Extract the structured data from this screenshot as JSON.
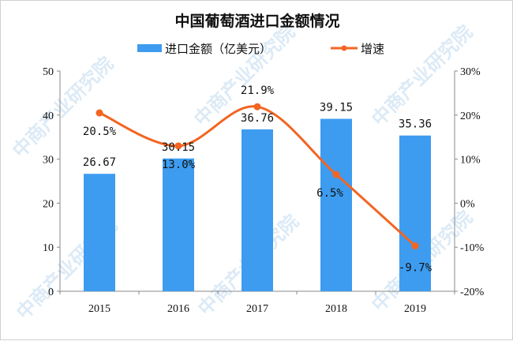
{
  "chart_data": {
    "type": "bar+line",
    "title": "中国葡萄酒进口金额情况",
    "categories": [
      "2015",
      "2016",
      "2017",
      "2018",
      "2019"
    ],
    "series": [
      {
        "name": "进口金额（亿美元）",
        "type": "bar",
        "axis": "left",
        "values": [
          26.67,
          30.15,
          36.76,
          39.15,
          35.36
        ],
        "labels": [
          "26.67",
          "30.15",
          "36.76",
          "39.15",
          "35.36"
        ],
        "color": "#3d9cf0"
      },
      {
        "name": "增速",
        "type": "line",
        "axis": "right",
        "values": [
          20.5,
          13.0,
          21.9,
          6.5,
          -9.7
        ],
        "labels": [
          "20.5%",
          "13.0%",
          "21.9%",
          "6.5%",
          "-9.7%"
        ],
        "color": "#f26522",
        "smooth": true
      }
    ],
    "left_axis": {
      "range": [
        0,
        50
      ],
      "ticks": [
        "0",
        "10",
        "20",
        "30",
        "40",
        "50"
      ]
    },
    "right_axis": {
      "range": [
        -20,
        30
      ],
      "ticks": [
        "-20%",
        "-10%",
        "0%",
        "10%",
        "20%",
        "30%"
      ]
    },
    "legend": "top",
    "grid": false
  },
  "watermark": "中商产业研究院"
}
